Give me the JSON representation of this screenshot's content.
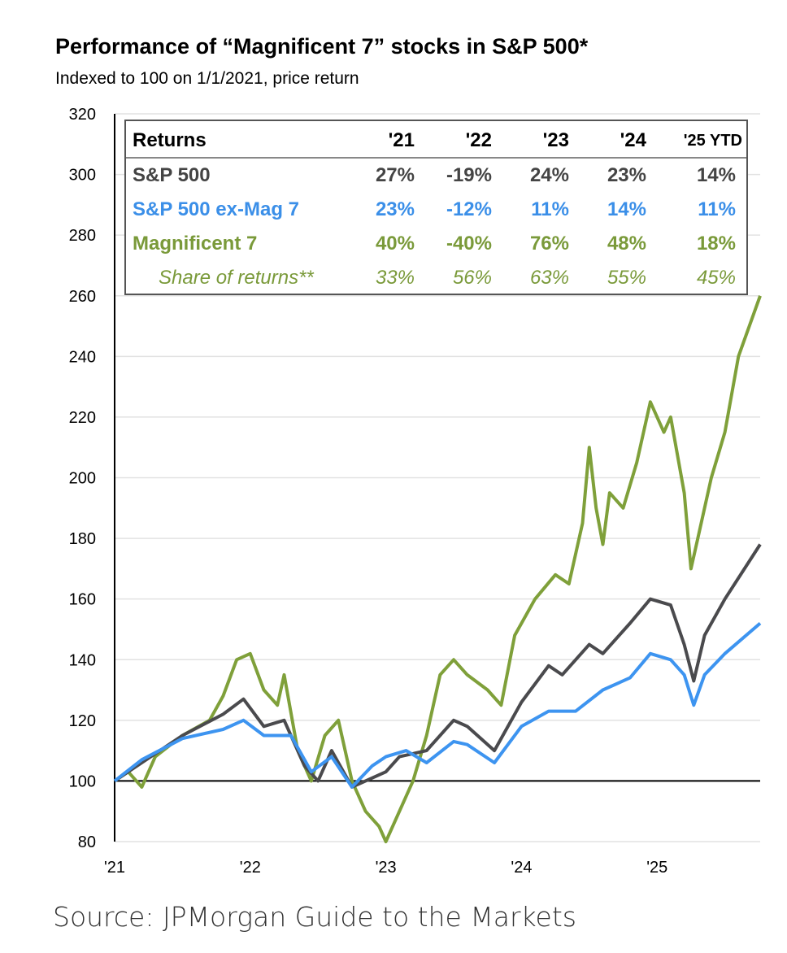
{
  "title": "Performance of “Magnificent 7” stocks in S&P 500*",
  "subtitle": "Indexed to 100 on 1/1/2021, price return",
  "source": "Source: JPMorgan Guide to the Markets",
  "table": {
    "header": [
      "Returns",
      "'21",
      "'22",
      "'23",
      "'24",
      "'25 YTD"
    ],
    "rows": [
      {
        "label": "S&P 500",
        "values": [
          "27%",
          "-19%",
          "24%",
          "23%",
          "14%"
        ],
        "color": "#444444"
      },
      {
        "label": "S&P 500 ex-Mag 7",
        "values": [
          "23%",
          "-12%",
          "11%",
          "14%",
          "11%"
        ],
        "color": "#3b8fe8"
      },
      {
        "label": "Magnificent 7",
        "values": [
          "40%",
          "-40%",
          "76%",
          "48%",
          "18%"
        ],
        "color": "#7a9a3a"
      },
      {
        "label": "Share of returns**",
        "values": [
          "33%",
          "56%",
          "63%",
          "55%",
          "45%"
        ],
        "color": "#7a9a3a"
      }
    ]
  },
  "chart_data": {
    "type": "line",
    "title": "Performance of “Magnificent 7” stocks in S&P 500*",
    "ylim": [
      80,
      320
    ],
    "xlim": [
      2021,
      2025.76
    ],
    "yticks": [
      80,
      100,
      120,
      140,
      160,
      180,
      200,
      220,
      240,
      260,
      280,
      300,
      320
    ],
    "xticks": [
      {
        "v": 2021,
        "label": "'21"
      },
      {
        "v": 2022,
        "label": "'22"
      },
      {
        "v": 2023,
        "label": "'23"
      },
      {
        "v": 2024,
        "label": "'24"
      },
      {
        "v": 2025,
        "label": "'25"
      }
    ],
    "grid": true,
    "series": [
      {
        "name": "Magnificent 7",
        "color": "#7fa03a",
        "x": [
          2021,
          2021.1,
          2021.2,
          2021.3,
          2021.5,
          2021.7,
          2021.8,
          2021.9,
          2022,
          2022.1,
          2022.2,
          2022.25,
          2022.35,
          2022.45,
          2022.55,
          2022.65,
          2022.75,
          2022.85,
          2022.95,
          2023,
          2023.1,
          2023.2,
          2023.3,
          2023.4,
          2023.5,
          2023.6,
          2023.75,
          2023.85,
          2023.95,
          2024.1,
          2024.25,
          2024.35,
          2024.45,
          2024.5,
          2024.55,
          2024.6,
          2024.65,
          2024.75,
          2024.85,
          2024.95,
          2025.05,
          2025.1,
          2025.2,
          2025.25,
          2025.3,
          2025.4,
          2025.5,
          2025.6,
          2025.76
        ],
        "y": [
          100,
          103,
          98,
          108,
          115,
          120,
          128,
          140,
          142,
          130,
          125,
          135,
          110,
          100,
          115,
          120,
          100,
          90,
          85,
          80,
          90,
          100,
          115,
          135,
          140,
          135,
          130,
          125,
          148,
          160,
          168,
          165,
          185,
          210,
          190,
          178,
          195,
          190,
          205,
          225,
          215,
          220,
          195,
          170,
          180,
          200,
          215,
          240,
          260
        ]
      },
      {
        "name": "S&P 500",
        "color": "#4a4a4d",
        "x": [
          2021,
          2021.2,
          2021.5,
          2021.8,
          2021.95,
          2022.1,
          2022.25,
          2022.4,
          2022.5,
          2022.6,
          2022.75,
          2022.85,
          2023,
          2023.1,
          2023.3,
          2023.5,
          2023.6,
          2023.8,
          2024,
          2024.2,
          2024.3,
          2024.5,
          2024.6,
          2024.8,
          2024.95,
          2025.1,
          2025.2,
          2025.27,
          2025.35,
          2025.5,
          2025.76
        ],
        "y": [
          100,
          106,
          115,
          122,
          127,
          118,
          120,
          105,
          100,
          110,
          98,
          100,
          103,
          108,
          110,
          120,
          118,
          110,
          126,
          138,
          135,
          145,
          142,
          152,
          160,
          158,
          145,
          133,
          148,
          160,
          178
        ]
      },
      {
        "name": "S&P 500 ex-Mag 7",
        "color": "#3d94f0",
        "x": [
          2021,
          2021.2,
          2021.5,
          2021.8,
          2021.95,
          2022.1,
          2022.3,
          2022.45,
          2022.6,
          2022.75,
          2022.9,
          2023,
          2023.15,
          2023.3,
          2023.5,
          2023.6,
          2023.8,
          2024,
          2024.2,
          2024.4,
          2024.6,
          2024.8,
          2024.95,
          2025.1,
          2025.2,
          2025.27,
          2025.35,
          2025.5,
          2025.76
        ],
        "y": [
          100,
          107,
          114,
          117,
          120,
          115,
          115,
          103,
          108,
          98,
          105,
          108,
          110,
          106,
          113,
          112,
          106,
          118,
          123,
          123,
          130,
          134,
          142,
          140,
          135,
          125,
          135,
          142,
          152
        ]
      }
    ]
  }
}
